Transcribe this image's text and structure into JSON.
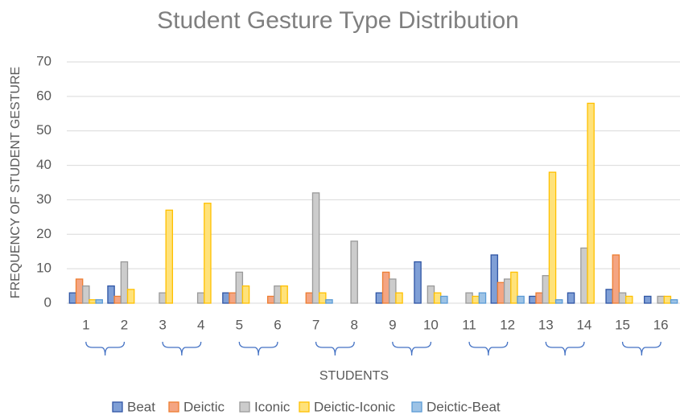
{
  "chart_data": {
    "type": "bar",
    "title": "Student Gesture Type Distribution",
    "x_label": "STUDENTS",
    "y_label": "FREQUENCY OF STUDENT GESTURE",
    "categories": [
      "1",
      "2",
      "3",
      "4",
      "5",
      "6",
      "7",
      "8",
      "9",
      "10",
      "11",
      "12",
      "13",
      "14",
      "15",
      "16"
    ],
    "series": [
      {
        "name": "Beat",
        "color": "#7f9fd6",
        "stroke": "#2f55a4",
        "values": [
          3,
          5,
          0,
          0,
          3,
          0,
          0,
          0,
          3,
          12,
          0,
          14,
          2,
          3,
          4,
          2
        ]
      },
      {
        "name": "Deictic",
        "color": "#f4a582",
        "stroke": "#ed7d31",
        "values": [
          7,
          2,
          0,
          0,
          3,
          2,
          3,
          0,
          9,
          0,
          0,
          6,
          3,
          0,
          14,
          0
        ]
      },
      {
        "name": "Iconic",
        "color": "#cccccc",
        "stroke": "#9a9a9a",
        "values": [
          5,
          12,
          3,
          3,
          9,
          5,
          32,
          18,
          7,
          5,
          3,
          7,
          8,
          16,
          3,
          2
        ]
      },
      {
        "name": "Deictic-Iconic",
        "color": "#ffe27a",
        "stroke": "#ffc000",
        "values": [
          1,
          4,
          27,
          29,
          5,
          5,
          3,
          0,
          3,
          3,
          2,
          9,
          38,
          58,
          2,
          2
        ]
      },
      {
        "name": "Deictic-Beat",
        "color": "#9dc3e6",
        "stroke": "#5b9bd5",
        "values": [
          1,
          0,
          0,
          0,
          0,
          0,
          1,
          0,
          0,
          2,
          3,
          2,
          1,
          0,
          0,
          1
        ]
      }
    ],
    "ylim": [
      0,
      70
    ],
    "yticks": [
      0,
      10,
      20,
      30,
      40,
      50,
      60,
      70
    ],
    "grid": true
  }
}
